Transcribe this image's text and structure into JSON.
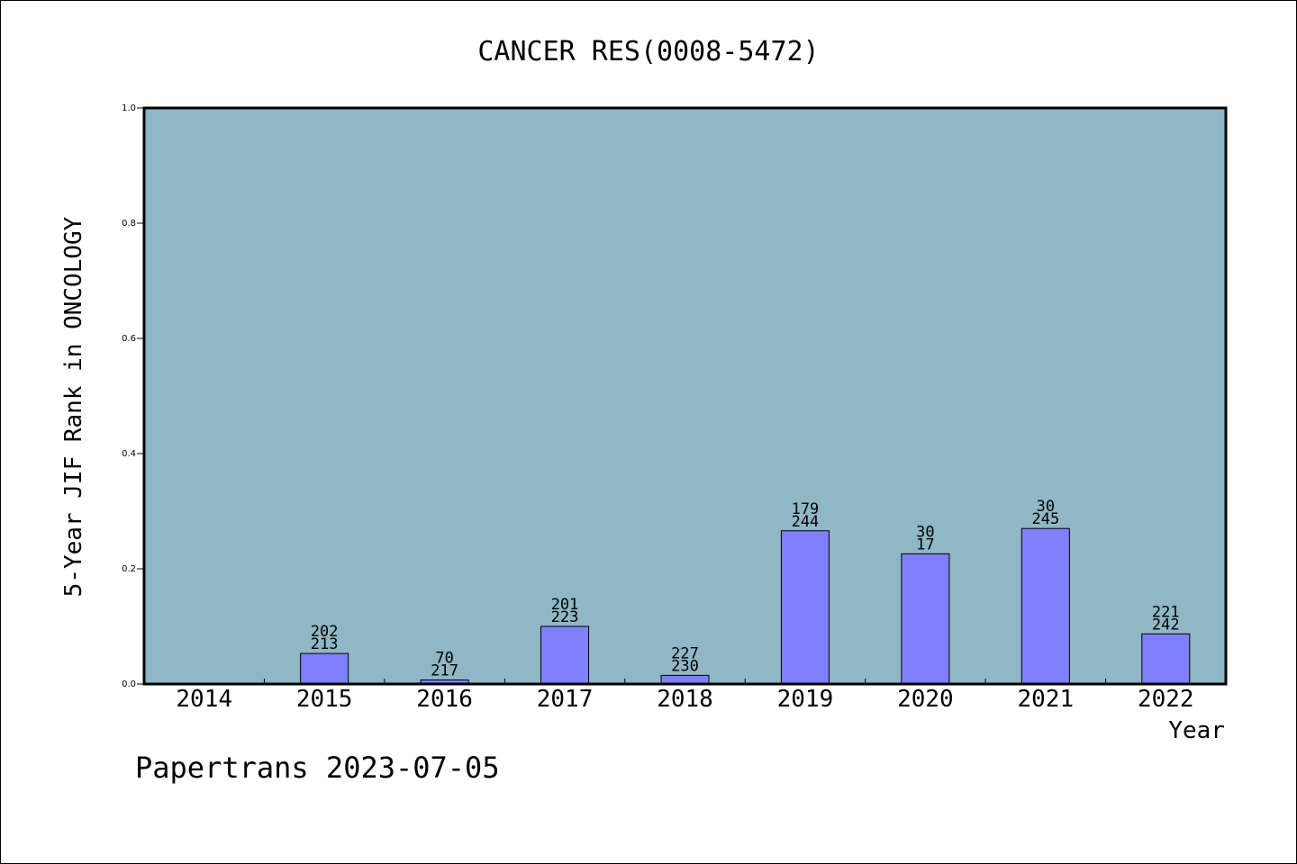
{
  "chart_data": {
    "type": "bar",
    "title": "CANCER RES(0008-5472)",
    "xlabel": "Year",
    "ylabel": "5-Year JIF Rank in ONCOLOGY",
    "ylim": [
      0,
      1.0
    ],
    "yticks": [
      {
        "value": 0.0,
        "label": "0.0"
      },
      {
        "value": 0.2,
        "label": "0.2"
      },
      {
        "value": 0.4,
        "label": "0.4"
      },
      {
        "value": 0.6,
        "label": "0.6"
      },
      {
        "value": 0.8,
        "label": "0.8"
      },
      {
        "value": 1.0,
        "label": "1.0"
      }
    ],
    "grid": false,
    "legend": "none",
    "categories": [
      "2014",
      "2015",
      "2016",
      "2017",
      "2018",
      "2019",
      "2020",
      "2021",
      "2022"
    ],
    "values": [
      null,
      0.053,
      0.007,
      0.1,
      0.015,
      0.266,
      0.226,
      0.27,
      0.087
    ],
    "bar_labels_top": [
      "",
      "202",
      "70",
      "201",
      "227",
      "179",
      "30",
      "30",
      "221"
    ],
    "bar_labels_bottom": [
      "",
      "213",
      "217",
      "223",
      "230",
      "244",
      "17",
      "245",
      "242"
    ],
    "colors": {
      "plot_background": "#8fb7c5",
      "bar_fill": "#8080ff",
      "bar_stroke": "#000000"
    }
  },
  "footer": {
    "watermark": "Papertrans 2023-07-05"
  }
}
